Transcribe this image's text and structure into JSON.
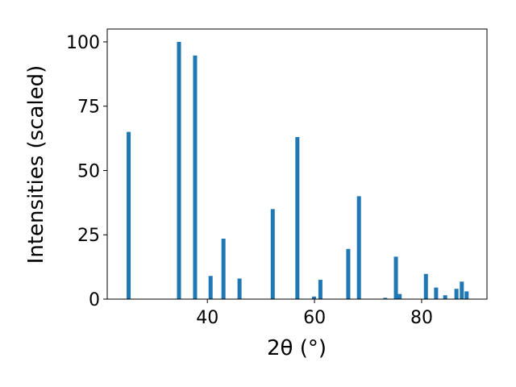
{
  "chart_data": {
    "type": "bar",
    "x_label": "2θ (°)",
    "y_label": "Intensities (scaled)",
    "x": [
      25.3,
      34.7,
      37.7,
      40.6,
      43.0,
      46.0,
      52.2,
      56.8,
      59.9,
      61.1,
      66.3,
      68.3,
      73.2,
      75.2,
      75.9,
      80.8,
      82.7,
      84.4,
      86.5,
      87.5,
      88.4
    ],
    "values": [
      65,
      100,
      94.7,
      9,
      23.5,
      8,
      35,
      63,
      1,
      7.5,
      19.5,
      40,
      0.5,
      16.5,
      2,
      9.8,
      4.5,
      1.5,
      4,
      6.8,
      3
    ],
    "color": "#1f77b4",
    "xlim": [
      21.3,
      92.2
    ],
    "xticks": [
      40,
      60,
      80
    ],
    "ylim": [
      0,
      105
    ],
    "yticks": [
      0,
      25,
      50,
      75,
      100
    ]
  }
}
